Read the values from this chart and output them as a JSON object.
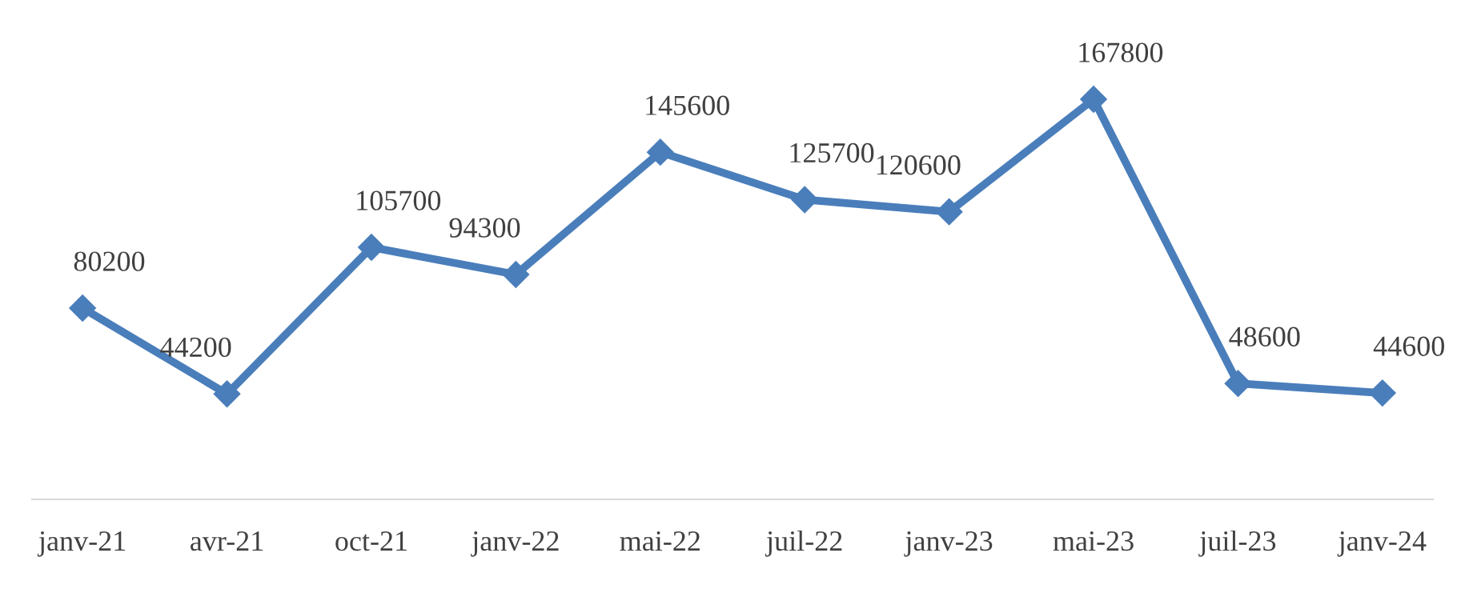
{
  "chart_data": {
    "type": "line",
    "categories": [
      "janv-21",
      "avr-21",
      "oct-21",
      "janv-22",
      "mai-22",
      "juil-22",
      "janv-23",
      "mai-23",
      "juil-23",
      "janv-24"
    ],
    "series": [
      {
        "color": "#4a7ebb",
        "values": [
          80200,
          44200,
          105700,
          94300,
          145600,
          125700,
          120600,
          167800,
          48600,
          44600
        ]
      }
    ],
    "marker": "diamond",
    "line_style": "solid",
    "data_labels": true,
    "grid": false,
    "legend": false,
    "tick_labels": "x"
  }
}
